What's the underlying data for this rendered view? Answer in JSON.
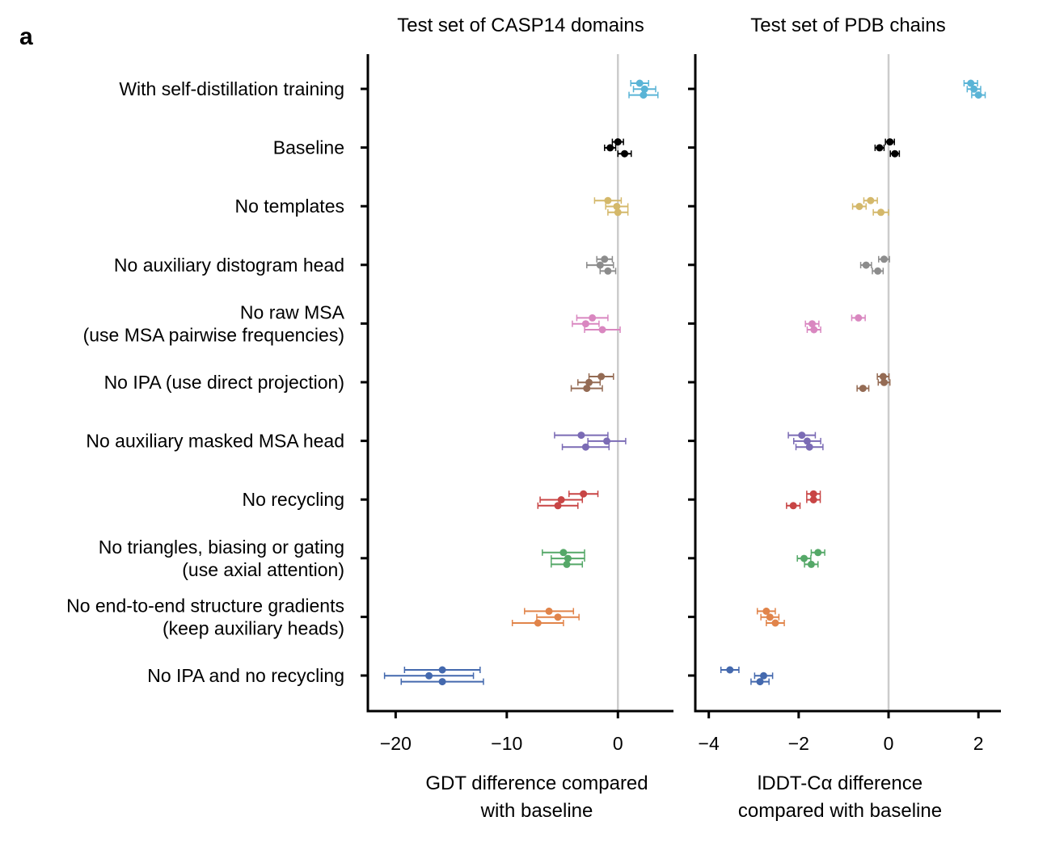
{
  "panel_label": "a",
  "chart_data": {
    "type": "scatter",
    "categories": [
      [
        "With self-distillation training"
      ],
      [
        "Baseline"
      ],
      [
        "No templates"
      ],
      [
        "No auxiliary distogram head"
      ],
      [
        "No raw MSA",
        "(use MSA pairwise frequencies)"
      ],
      [
        "No IPA (use direct projection)"
      ],
      [
        "No auxiliary masked MSA head"
      ],
      [
        "No recycling"
      ],
      [
        "No triangles, biasing or gating",
        "(use axial attention)"
      ],
      [
        "No end-to-end structure gradients",
        "(keep auxiliary heads)"
      ],
      [
        "No IPA and no recycling"
      ]
    ],
    "colors": [
      "#5ab4d6",
      "#000000",
      "#d4b86a",
      "#8c8c8c",
      "#d987c0",
      "#946b54",
      "#7b6bb5",
      "#c84545",
      "#55a868",
      "#e1844a",
      "#4469ae"
    ],
    "panels": [
      {
        "title": "Test set of CASP14 domains",
        "xlabel": [
          "GDT difference compared",
          "with baseline"
        ],
        "xlim": [
          -22.5,
          5.0
        ],
        "xticks": [
          -20,
          -10,
          0
        ],
        "xtick_labels": [
          "−20",
          "−10",
          "0"
        ],
        "reference_line": 0,
        "values": [
          [
            1.96,
            2.4,
            2.3
          ],
          [
            0,
            -0.7,
            0.6
          ],
          [
            -0.9,
            -0.1,
            0
          ],
          [
            -1.2,
            -1.6,
            -0.9
          ],
          [
            -2.3,
            -2.9,
            -1.4
          ],
          [
            -1.5,
            -2.6,
            -2.8
          ],
          [
            -3.3,
            -1.0,
            -2.9
          ],
          [
            -3.1,
            -5.1,
            -5.4
          ],
          [
            -4.9,
            -4.5,
            -4.6
          ],
          [
            -6.2,
            -5.4,
            -7.2
          ],
          [
            -15.8,
            -17.0,
            -15.8
          ]
        ],
        "errors": [
          [
            0.8,
            1.0,
            1.3
          ],
          [
            0.5,
            0.5,
            0.6
          ],
          [
            1.2,
            1.0,
            0.9
          ],
          [
            0.7,
            1.2,
            0.7
          ],
          [
            1.4,
            1.2,
            1.6
          ],
          [
            1.1,
            1.0,
            1.4
          ],
          [
            2.4,
            1.7,
            2.1
          ],
          [
            1.3,
            1.9,
            1.8
          ],
          [
            1.9,
            1.5,
            1.4
          ],
          [
            2.2,
            1.9,
            2.3
          ],
          [
            3.4,
            4.0,
            3.7
          ]
        ]
      },
      {
        "title": "Test set of PDB chains",
        "xlabel": [
          "lDDT-Cα difference",
          "compared with baseline"
        ],
        "xlim": [
          -4.3,
          2.5
        ],
        "xticks": [
          -4,
          -2,
          0,
          2
        ],
        "xtick_labels": [
          "−4",
          "−2",
          "0",
          "2"
        ],
        "reference_line": 0,
        "values": [
          [
            1.83,
            1.9,
            2.0
          ],
          [
            0.03,
            -0.2,
            0.14
          ],
          [
            -0.4,
            -0.65,
            -0.17
          ],
          [
            -0.1,
            -0.5,
            -0.24
          ],
          [
            -0.67,
            -1.7,
            -1.66
          ],
          [
            -0.12,
            -0.1,
            -0.57
          ],
          [
            -1.93,
            -1.81,
            -1.76
          ],
          [
            -1.67,
            -1.67,
            -2.12
          ],
          [
            -1.57,
            -1.88,
            -1.72
          ],
          [
            -2.72,
            -2.64,
            -2.52
          ],
          [
            -3.53,
            -2.78,
            -2.86
          ]
        ],
        "errors": [
          [
            0.15,
            0.15,
            0.15
          ],
          [
            0.1,
            0.1,
            0.1
          ],
          [
            0.15,
            0.15,
            0.17
          ],
          [
            0.12,
            0.12,
            0.12
          ],
          [
            0.15,
            0.15,
            0.15
          ],
          [
            0.13,
            0.13,
            0.13
          ],
          [
            0.3,
            0.3,
            0.3
          ],
          [
            0.15,
            0.15,
            0.15
          ],
          [
            0.15,
            0.15,
            0.15
          ],
          [
            0.2,
            0.2,
            0.2
          ],
          [
            0.2,
            0.2,
            0.2
          ]
        ]
      }
    ]
  }
}
